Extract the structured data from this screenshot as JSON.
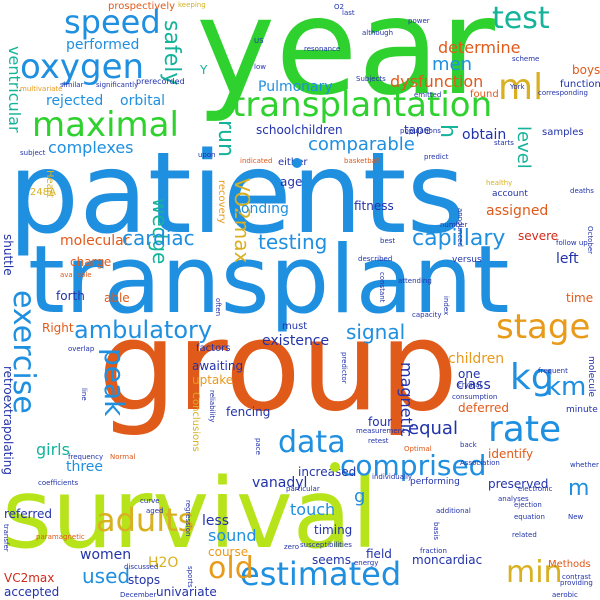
{
  "colors": {
    "green": "#2ed12e",
    "lime": "#b6e31a",
    "blue": "#1f8fe0",
    "orange": "#e05a1a",
    "amber": "#e89a1a",
    "teal": "#14b39a",
    "navy": "#2233aa",
    "cyan": "#18b8d8",
    "red": "#d22a1a",
    "purple": "#5a22b0",
    "gold": "#d8b020",
    "gray": "#8a8a8a"
  },
  "words": {
    "year": "year",
    "patients": "patients",
    "transplant": "transplant",
    "group": "group",
    "survival": "survival",
    "transplantation": "transplantation",
    "maximal": "maximal",
    "oxygen": "oxygen",
    "speed": "speed",
    "test": "test",
    "ml": "ml",
    "determine": "determine",
    "men": "men",
    "performed": "performed",
    "safely": "safely",
    "Pulmonary": "Pulmonary",
    "dysfunction": "dysfunction",
    "rejected": "rejected",
    "orbital": "orbital",
    "ventricular": "ventricular",
    "complexes": "complexes",
    "comparable": "comparable",
    "level": "level",
    "schoolchildren": "schoolchildren",
    "tape": "tape",
    "obtain": "obtain",
    "cardiac": "cardiac",
    "testing": "testing",
    "capillary": "capillary",
    "wedge": "wedge",
    "bonding": "bonding",
    "molecular": "molecular",
    "ambulatory": "ambulatory",
    "signal": "signal",
    "stage": "stage",
    "exercise": "exercise",
    "peak": "peak",
    "kg": "kg",
    "km": "km",
    "rate": "rate",
    "data": "data",
    "comprised": "comprised",
    "VO2max": "VO2max",
    "adults": "adults",
    "estimated": "estimated",
    "old": "old",
    "min": "min",
    "used": "used",
    "existence": "existence",
    "equal": "equal",
    "children": "children",
    "class": "class",
    "one": "one",
    "run": "run",
    "h": "h",
    "age": "age",
    "fitness": "fitness",
    "assigned": "assigned",
    "severe": "severe",
    "left": "left",
    "time": "time",
    "deferred": "deferred",
    "identify": "identify",
    "preserved": "preserved",
    "m": "m",
    "g": "g",
    "vanadyl": "vanadyl",
    "three": "three",
    "girls": "girls",
    "increased": "increased",
    "touch": "touch",
    "sound": "sound",
    "course": "course",
    "less": "less",
    "women": "women",
    "H2O": "H2O",
    "stops": "stops",
    "univariate": "univariate",
    "seems": "seems",
    "field": "field",
    "moncardiac": "moncardiac",
    "timing": "timing",
    "awaiting": "awaiting",
    "uptake": "uptake",
    "fencing": "fencing",
    "four": "four",
    "magnetic": "magnetic",
    "recovery": "recovery",
    "charge": "charge",
    "forth": "forth",
    "able": "able",
    "Right": "Right",
    "referred": "referred",
    "VC2max": "VC2max",
    "Methods": "Methods",
    "boys": "boys",
    "functional": "functional",
    "found": "found",
    "either": "either",
    "must": "must",
    "factors": "factors",
    "conclusions": "conclusions",
    "shuttle": "shuttle",
    "retroextrapolating": "retroextrapolating",
    "accepted": "accepted",
    "prospectively": "prospectively",
    "Y": "Y",
    "Heart": "Heart",
    "248A": "248A",
    "Subjects": "Subjects",
    "populations": "populations",
    "samples": "samples",
    "resonance": "resonance",
    "basketball": "basketball",
    "versus": "versus",
    "molecule": "molecule",
    "minute": "minute",
    "frequent": "frequent",
    "transfer": "transfer",
    "overlap": "overlap",
    "followup": "follow up",
    "Conclusions": "Conclusions",
    "predict": "predict",
    "keeping": "keeping",
    "similar": "similar",
    "multivariate": "multivariate",
    "significantly": "significantly",
    "prerecorded": "prerecorded",
    "subject": "subject",
    "low": "low",
    "emitted": "emitted",
    "York": "York",
    "corresponding": "corresponding",
    "October": "October",
    "power": "power",
    "scheme": "scheme",
    "healthy": "healthy",
    "deaths": "deaths",
    "account": "account",
    "announced": "announced",
    "number": "number",
    "best": "best",
    "described": "described",
    "attending": "attending",
    "constant": "constant",
    "capacity": "capacity",
    "index": "index",
    "crystal": "crystal",
    "consumption": "consumption",
    "measurement": "measurement",
    "retest": "retest",
    "Optimal": "Optimal",
    "back": "back",
    "Association": "Association",
    "analyses": "analyses",
    "additional": "additional",
    "ejection": "ejection",
    "equation": "equation",
    "related": "related",
    "fraction": "fraction",
    "energy": "energy",
    "susceptibilities": "susceptibilities",
    "zero": "zero",
    "aged": "aged",
    "December": "December",
    "sports": "sports",
    "discussed": "discussed",
    "curve": "curve",
    "paramagnetic": "paramagnetic",
    "coefficients": "coefficients",
    "regression": "regression",
    "reliability": "reliability",
    "available": "available",
    "line": "line",
    "often": "often",
    "prediction": "prediction",
    "basis": "basis",
    "aerobic": "aerobic",
    "contrast": "contrast",
    "providing": "providing",
    "whether": "whether",
    "electronic": "electronic",
    "New": "New",
    "particular": "particular",
    "individually": "individually",
    "performing": "performing",
    "Normal": "Normal",
    "frequency": "frequency",
    "pace": "pace",
    "upon": "upon",
    "indicated": "indicated",
    "starts": "starts",
    "although": "although",
    "US": "US",
    "last": "last",
    "O2": "O2",
    "predictor": "predictor"
  }
}
